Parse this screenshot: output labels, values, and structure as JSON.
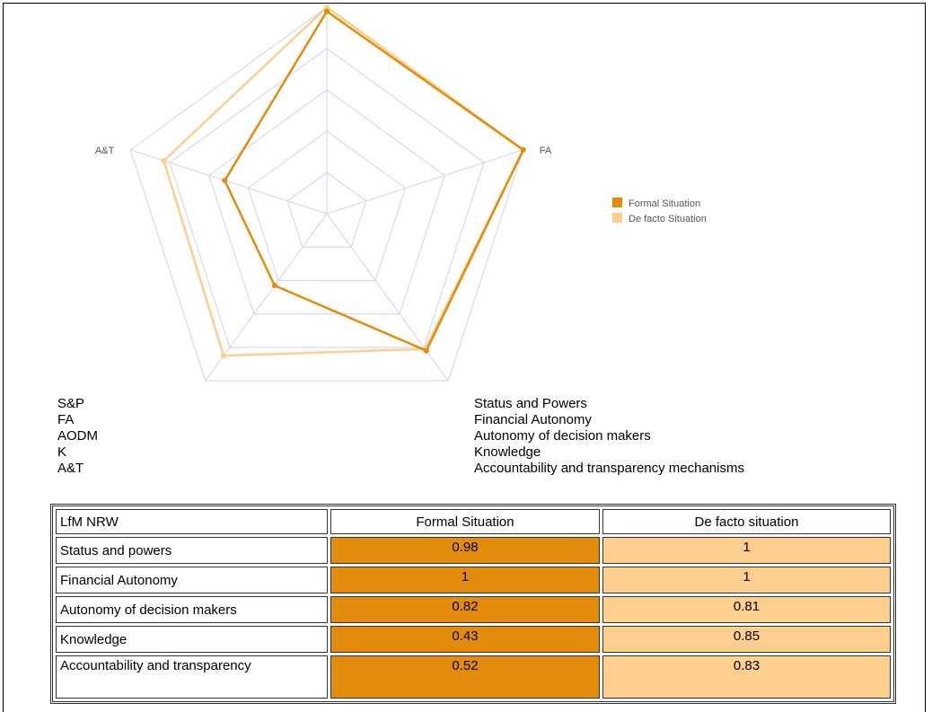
{
  "chart_data": {
    "type": "radar",
    "axes": [
      "S&P",
      "FA",
      "AODM",
      "K",
      "A&T"
    ],
    "rlim": [
      0,
      1
    ],
    "rings": 5,
    "series": [
      {
        "name": "Formal Situation",
        "values": [
          0.98,
          1,
          0.82,
          0.43,
          0.52
        ],
        "color": "#e38b0a"
      },
      {
        "name": "De facto Situation",
        "values": [
          1,
          1,
          0.81,
          0.85,
          0.83
        ],
        "color": "#fccf8e"
      }
    ],
    "legend_position": "right",
    "grid_color": "#d8d8e8"
  },
  "abbreviations": [
    {
      "key": "S&P",
      "full": "Status and Powers"
    },
    {
      "key": "FA",
      "full": "Financial Autonomy"
    },
    {
      "key": "AODM",
      "full": "Autonomy of decision makers"
    },
    {
      "key": "K",
      "full": "Knowledge"
    },
    {
      "key": "A&T",
      "full": "Accountability and transparency mechanisms"
    }
  ],
  "table": {
    "headers": [
      "LfM NRW",
      "Formal Situation",
      "De facto situation"
    ],
    "rows": [
      {
        "label": "Status and powers",
        "formal": "0.98",
        "defacto": "1"
      },
      {
        "label": "Financial Autonomy",
        "formal": "1",
        "defacto": "1"
      },
      {
        "label": "Autonomy of decision makers",
        "formal": "0.82",
        "defacto": "0.81"
      },
      {
        "label": "Knowledge",
        "formal": "0.43",
        "defacto": "0.85"
      },
      {
        "label": "Accountability and transparency",
        "formal": "0.52",
        "defacto": "0.83"
      }
    ]
  }
}
